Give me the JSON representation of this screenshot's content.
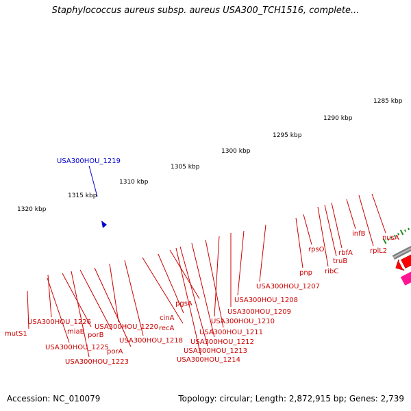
{
  "header": {
    "title": "Staphylococcus aureus subsp. aureus USA300_TCH1516, complete..."
  },
  "footer": {
    "accession": "Accession: NC_010079",
    "topology": "Topology: circular; Length: 2,872,915 bp; Genes: 2,739"
  },
  "colors": {
    "forward_arrow": "#ff0000",
    "reverse_arrow": "#ff0000",
    "label_gene": "#cc0000",
    "label_highlight": "#0000cc",
    "ruler_tick": "#228b22",
    "backbone": "#808080"
  },
  "scale_labels": [
    "1285 kbp",
    "1290 kbp",
    "1295 kbp",
    "1300 kbp",
    "1305 kbp",
    "1310 kbp",
    "1315 kbp",
    "1320 kbp"
  ],
  "highlight_label": "USA300HOU_1219",
  "gene_labels": [
    "nusA",
    "rplL2",
    "infB",
    "rbfA",
    "truB",
    "ribC",
    "rpsO",
    "pnp",
    "USA300HOU_1207",
    "USA300HOU_1208",
    "USA300HOU_1209",
    "USA300HOU_1210",
    "USA300HOU_1211",
    "USA300HOU_1212",
    "USA300HOU_1213",
    "USA300HOU_1214",
    "pgsA",
    "cinA",
    "recA",
    "USA300HOU_1218",
    "USA300HOU_1220",
    "porA",
    "porB",
    "USA300HOU_1223",
    "miaB",
    "USA300HOU_1225",
    "USA300HOU_1226",
    "mutS1"
  ]
}
